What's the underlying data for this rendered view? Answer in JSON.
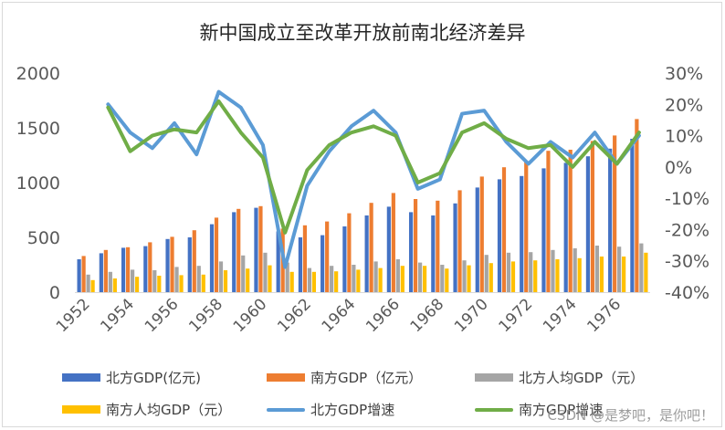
{
  "chart_data": {
    "type": "bar+line",
    "title": "新中国成立至改革开放前南北经济差异",
    "years": [
      1952,
      1953,
      1954,
      1955,
      1956,
      1957,
      1958,
      1959,
      1960,
      1961,
      1962,
      1963,
      1964,
      1965,
      1966,
      1967,
      1968,
      1969,
      1970,
      1971,
      1972,
      1973,
      1974,
      1975,
      1976,
      1977
    ],
    "x_tick_labels": [
      "1952",
      "1954",
      "1956",
      "1958",
      "1960",
      "1962",
      "1964",
      "1966",
      "1968",
      "1970",
      "1972",
      "1974",
      "1976"
    ],
    "left_axis": {
      "min": 0,
      "max": 2000,
      "ticks": [
        "0",
        "500",
        "1000",
        "1500",
        "2000"
      ],
      "tick_values": [
        0,
        500,
        1000,
        1500,
        2000
      ]
    },
    "right_axis": {
      "min": -40,
      "max": 30,
      "ticks": [
        "30%",
        "20%",
        "10%",
        "0%",
        "-10%",
        "-20%",
        "-30%",
        "-40%"
      ],
      "tick_values": [
        30,
        20,
        10,
        0,
        -10,
        -20,
        -30,
        -40
      ]
    },
    "series": [
      {
        "name": "北方GDP(亿元)",
        "kind": "bar",
        "axis": "left",
        "color": "#4472c4",
        "values": [
          300,
          355,
          405,
          420,
          485,
          500,
          620,
          730,
          770,
          555,
          500,
          520,
          600,
          700,
          780,
          730,
          700,
          810,
          955,
          1030,
          1060,
          1130,
          1180,
          1240,
          1310,
          1400
        ]
      },
      {
        "name": "南方GDP（亿元）",
        "kind": "bar",
        "axis": "left",
        "color": "#ed7d31",
        "values": [
          330,
          385,
          410,
          455,
          505,
          565,
          680,
          760,
          785,
          580,
          610,
          645,
          720,
          815,
          905,
          850,
          835,
          930,
          1055,
          1140,
          1190,
          1290,
          1300,
          1380,
          1430,
          1580
        ]
      },
      {
        "name": "北方人均GDP（元）",
        "kind": "bar",
        "axis": "left",
        "color": "#a5a5a5",
        "values": [
          160,
          185,
          205,
          200,
          230,
          240,
          280,
          335,
          360,
          270,
          220,
          240,
          250,
          280,
          300,
          270,
          250,
          290,
          340,
          360,
          365,
          385,
          400,
          425,
          415,
          445
        ]
      },
      {
        "name": "南方人均GDP（元）",
        "kind": "bar",
        "axis": "left",
        "color": "#ffc000",
        "values": [
          110,
          125,
          140,
          150,
          155,
          160,
          200,
          215,
          245,
          185,
          185,
          190,
          205,
          220,
          240,
          240,
          215,
          245,
          265,
          280,
          290,
          300,
          310,
          325,
          325,
          360
        ]
      },
      {
        "name": "北方GDP增速",
        "kind": "line",
        "axis": "right",
        "color": "#5b9bd5",
        "values": [
          null,
          20,
          11,
          6,
          14,
          4,
          24,
          19,
          7,
          -32,
          -6,
          5,
          13,
          18,
          11,
          -7,
          -4,
          17,
          18,
          8,
          1,
          8,
          3,
          11,
          1,
          10
        ]
      },
      {
        "name": "南方GDP增速",
        "kind": "line",
        "axis": "right",
        "color": "#70ad47",
        "values": [
          null,
          19,
          5,
          10,
          12,
          11,
          21,
          11,
          3,
          -21,
          -1,
          7,
          11,
          13,
          10,
          -5,
          -2,
          11,
          14,
          9,
          6,
          7,
          0,
          8,
          1,
          11
        ]
      }
    ]
  },
  "watermark": "CSDN @是梦吧，是你吧！"
}
